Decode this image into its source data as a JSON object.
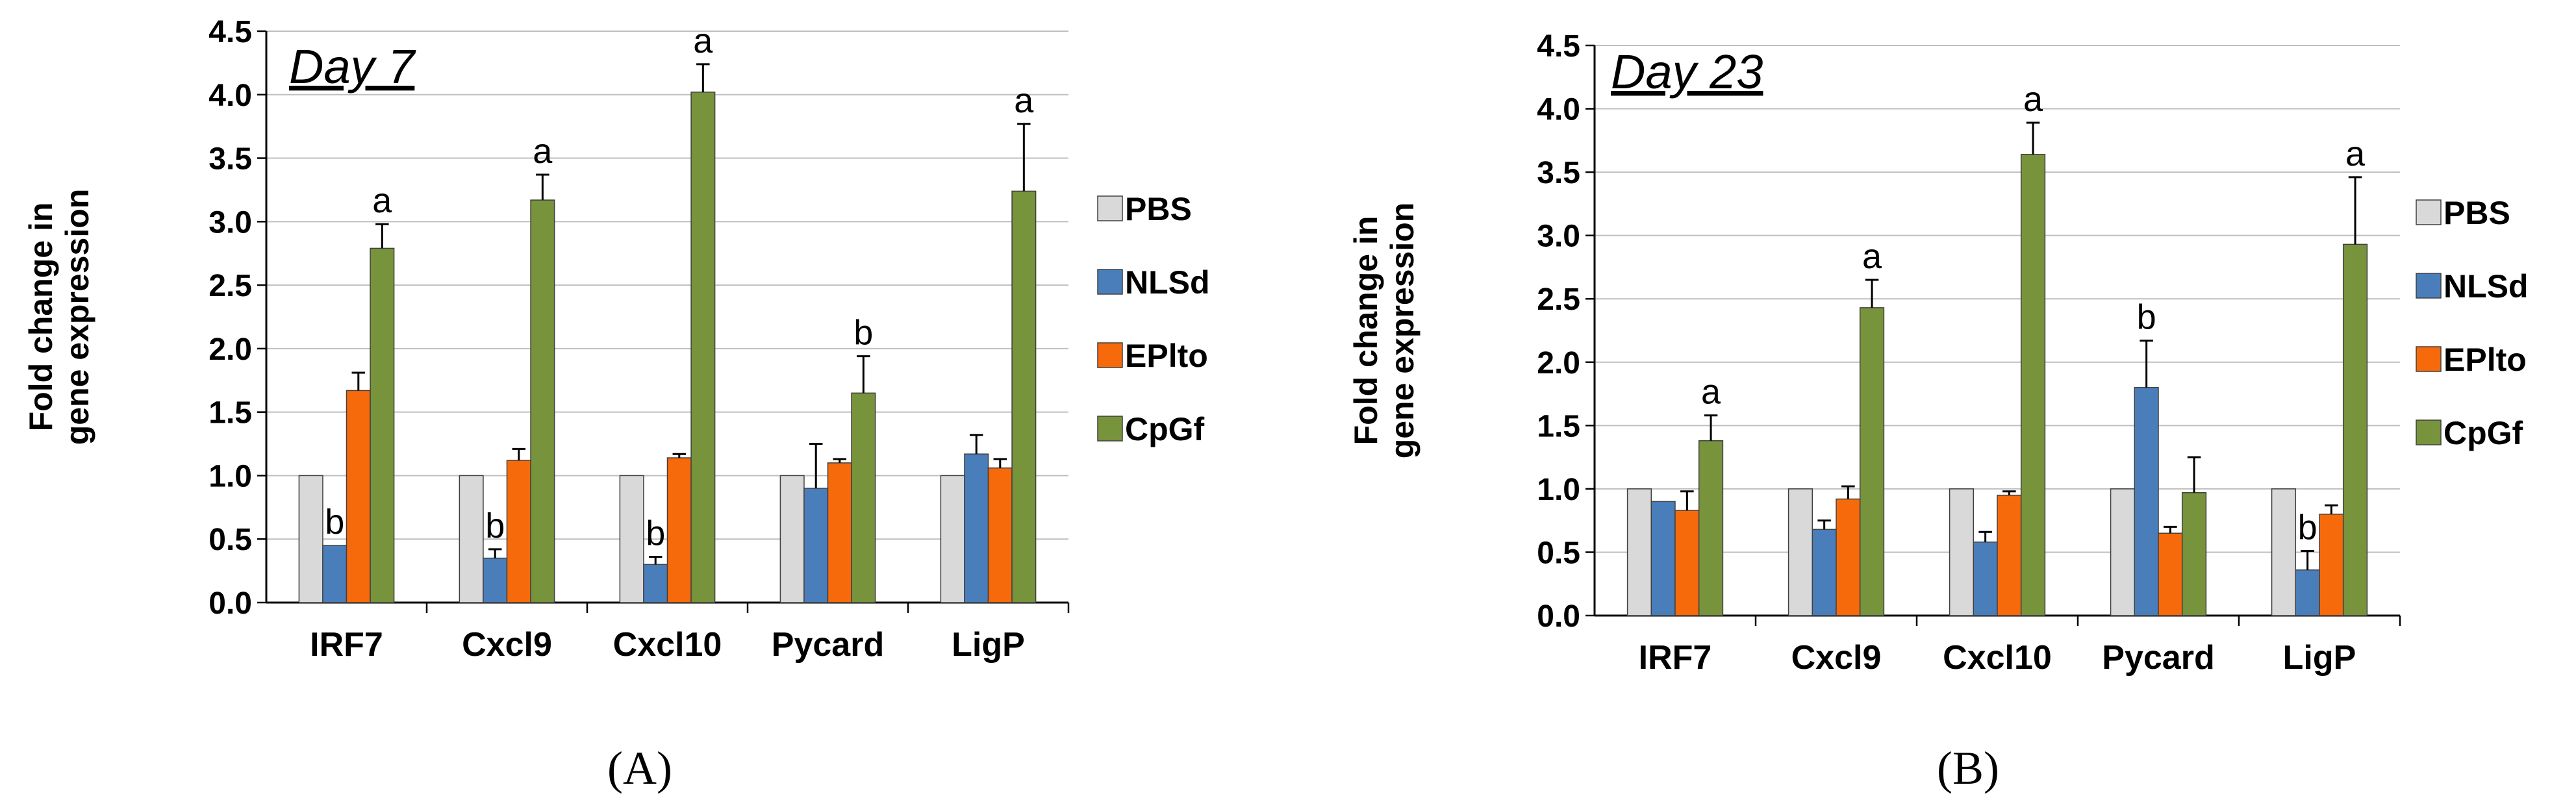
{
  "chart_data": [
    {
      "type": "bar",
      "panel_label": "(A)",
      "title": "Day 7",
      "ylabel_lines": [
        "Fold change in",
        "gene expression"
      ],
      "xlabel": "",
      "ylim": [
        0,
        4.5
      ],
      "yticks": [
        "0.0",
        "0.5",
        "1.0",
        "1.5",
        "2.0",
        "2.5",
        "3.0",
        "3.5",
        "4.0",
        "4.5"
      ],
      "grid": true,
      "legend_position": "right",
      "categories": [
        "IRF7",
        "Cxcl9",
        "Cxcl10",
        "Pycard",
        "LigP"
      ],
      "series": [
        {
          "name": "PBS",
          "color": "#d9d9d9",
          "values": [
            1.0,
            1.0,
            1.0,
            1.0,
            1.0
          ],
          "errors": [
            0,
            0,
            0,
            0,
            0
          ],
          "sig": [
            "",
            "",
            "",
            "",
            ""
          ]
        },
        {
          "name": "NLSd",
          "color": "#4a7ebb",
          "values": [
            0.45,
            0.35,
            0.3,
            0.9,
            1.17
          ],
          "errors": [
            0,
            0.07,
            0.06,
            0.35,
            0.15
          ],
          "sig": [
            "b",
            "b",
            "b",
            "",
            ""
          ]
        },
        {
          "name": "EPlto",
          "color": "#f66a0b",
          "values": [
            1.67,
            1.12,
            1.14,
            1.1,
            1.06
          ],
          "errors": [
            0.14,
            0.09,
            0.03,
            0.03,
            0.07
          ],
          "sig": [
            "",
            "",
            "",
            "",
            ""
          ]
        },
        {
          "name": "CpGf",
          "color": "#77933c",
          "values": [
            2.79,
            3.17,
            4.02,
            1.65,
            3.24
          ],
          "errors": [
            0.19,
            0.2,
            0.22,
            0.29,
            0.53
          ],
          "sig": [
            "a",
            "a",
            "a",
            "b",
            "a"
          ]
        }
      ]
    },
    {
      "type": "bar",
      "panel_label": "(B)",
      "title": "Day 23",
      "ylabel_lines": [
        "Fold change in",
        "gene expression"
      ],
      "xlabel": "",
      "ylim": [
        0,
        4.5
      ],
      "yticks": [
        "0.0",
        "0.5",
        "1.0",
        "1.5",
        "2.0",
        "2.5",
        "3.0",
        "3.5",
        "4.0",
        "4.5"
      ],
      "grid": true,
      "legend_position": "right",
      "categories": [
        "IRF7",
        "Cxcl9",
        "Cxcl10",
        "Pycard",
        "LigP"
      ],
      "series": [
        {
          "name": "PBS",
          "color": "#d9d9d9",
          "values": [
            1.0,
            1.0,
            1.0,
            1.0,
            1.0
          ],
          "errors": [
            0,
            0,
            0,
            0,
            0
          ],
          "sig": [
            "",
            "",
            "",
            "",
            ""
          ]
        },
        {
          "name": "NLSd",
          "color": "#4a7ebb",
          "values": [
            0.9,
            0.68,
            0.58,
            1.8,
            0.36
          ],
          "errors": [
            0,
            0.07,
            0.08,
            0.37,
            0.15
          ],
          "sig": [
            "",
            "",
            "",
            "b",
            "b"
          ]
        },
        {
          "name": "EPlto",
          "color": "#f66a0b",
          "values": [
            0.83,
            0.92,
            0.95,
            0.65,
            0.8
          ],
          "errors": [
            0.15,
            0.1,
            0.03,
            0.05,
            0.07
          ],
          "sig": [
            "",
            "",
            "",
            "",
            ""
          ]
        },
        {
          "name": "CpGf",
          "color": "#77933c",
          "values": [
            1.38,
            2.43,
            3.64,
            0.97,
            2.93
          ],
          "errors": [
            0.2,
            0.22,
            0.25,
            0.28,
            0.53
          ],
          "sig": [
            "a",
            "a",
            "a",
            "",
            "a"
          ]
        }
      ]
    }
  ]
}
